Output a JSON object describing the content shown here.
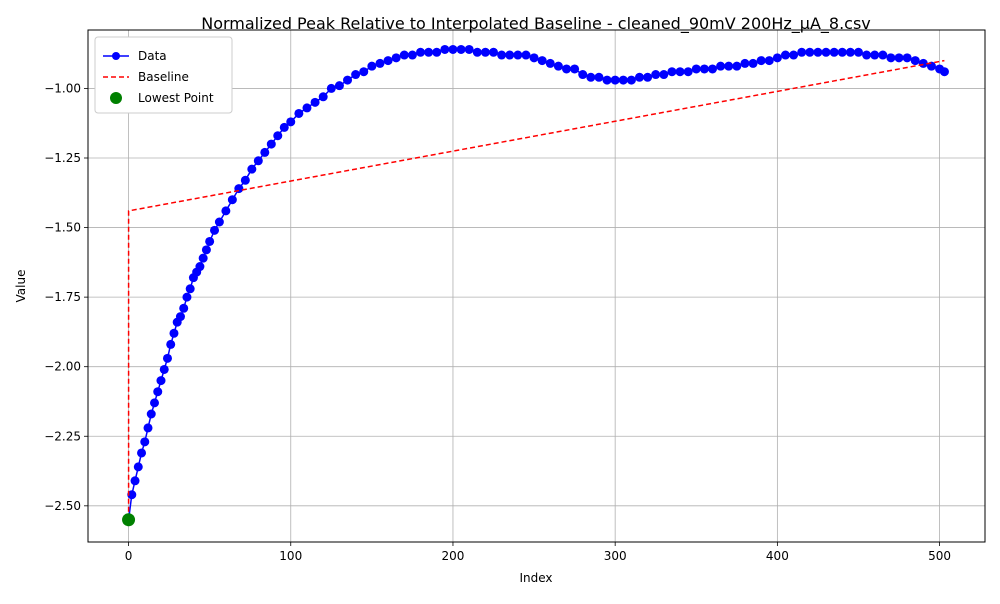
{
  "chart_data": {
    "type": "line",
    "title": "Normalized Peak Relative to Interpolated Baseline - cleaned_90mV 200Hz_μA_8.csv",
    "xlabel": "Index",
    "ylabel": "Value",
    "xlim": [
      -25,
      528
    ],
    "ylim": [
      -2.63,
      -0.79
    ],
    "xticks": [
      0,
      100,
      200,
      300,
      400,
      500
    ],
    "yticks": [
      -2.5,
      -2.25,
      -2.0,
      -1.75,
      -1.5,
      -1.25,
      -1.0
    ],
    "xtick_labels": [
      "0",
      "100",
      "200",
      "300",
      "400",
      "500"
    ],
    "ytick_labels": [
      "−2.50",
      "−2.25",
      "−2.00",
      "−1.75",
      "−1.50",
      "−1.25",
      "−1.00"
    ],
    "grid": true,
    "legend_position": "top-left",
    "series": [
      {
        "name": "Data",
        "color": "#0000ff",
        "style": "line-with-circle-markers",
        "x": [
          0,
          2,
          4,
          6,
          8,
          10,
          12,
          14,
          16,
          18,
          20,
          22,
          24,
          26,
          28,
          30,
          32,
          34,
          36,
          38,
          40,
          42,
          44,
          46,
          48,
          50,
          53,
          56,
          60,
          64,
          68,
          72,
          76,
          80,
          84,
          88,
          92,
          96,
          100,
          105,
          110,
          115,
          120,
          125,
          130,
          135,
          140,
          145,
          150,
          155,
          160,
          165,
          170,
          175,
          180,
          185,
          190,
          195,
          200,
          205,
          210,
          215,
          220,
          225,
          230,
          235,
          240,
          245,
          250,
          255,
          260,
          265,
          270,
          275,
          280,
          285,
          290,
          295,
          300,
          305,
          310,
          315,
          320,
          325,
          330,
          335,
          340,
          345,
          350,
          355,
          360,
          365,
          370,
          375,
          380,
          385,
          390,
          395,
          400,
          405,
          410,
          415,
          420,
          425,
          430,
          435,
          440,
          445,
          450,
          455,
          460,
          465,
          470,
          475,
          480,
          485,
          490,
          495,
          500,
          503
        ],
        "y": [
          -2.55,
          -2.46,
          -2.41,
          -2.36,
          -2.31,
          -2.27,
          -2.22,
          -2.17,
          -2.13,
          -2.09,
          -2.05,
          -2.01,
          -1.97,
          -1.92,
          -1.88,
          -1.84,
          -1.82,
          -1.79,
          -1.75,
          -1.72,
          -1.68,
          -1.66,
          -1.64,
          -1.61,
          -1.58,
          -1.55,
          -1.51,
          -1.48,
          -1.44,
          -1.4,
          -1.36,
          -1.33,
          -1.29,
          -1.26,
          -1.23,
          -1.2,
          -1.17,
          -1.14,
          -1.12,
          -1.09,
          -1.07,
          -1.05,
          -1.03,
          -1.0,
          -0.99,
          -0.97,
          -0.95,
          -0.94,
          -0.92,
          -0.91,
          -0.9,
          -0.89,
          -0.88,
          -0.88,
          -0.87,
          -0.87,
          -0.87,
          -0.86,
          -0.86,
          -0.86,
          -0.86,
          -0.87,
          -0.87,
          -0.87,
          -0.88,
          -0.88,
          -0.88,
          -0.88,
          -0.89,
          -0.9,
          -0.91,
          -0.92,
          -0.93,
          -0.93,
          -0.95,
          -0.96,
          -0.96,
          -0.97,
          -0.97,
          -0.97,
          -0.97,
          -0.96,
          -0.96,
          -0.95,
          -0.95,
          -0.94,
          -0.94,
          -0.94,
          -0.93,
          -0.93,
          -0.93,
          -0.92,
          -0.92,
          -0.92,
          -0.91,
          -0.91,
          -0.9,
          -0.9,
          -0.89,
          -0.88,
          -0.88,
          -0.87,
          -0.87,
          -0.87,
          -0.87,
          -0.87,
          -0.87,
          -0.87,
          -0.87,
          -0.88,
          -0.88,
          -0.88,
          -0.89,
          -0.89,
          -0.89,
          -0.9,
          -0.91,
          -0.92,
          -0.93,
          -0.94
        ]
      },
      {
        "name": "Baseline",
        "color": "#ff0000",
        "style": "dashed",
        "x": [
          0,
          0,
          503
        ],
        "y": [
          -2.55,
          -1.44,
          -0.9
        ]
      }
    ],
    "points": [
      {
        "name": "Lowest Point",
        "color": "#008000",
        "x": 0,
        "y": -2.55
      }
    ]
  }
}
